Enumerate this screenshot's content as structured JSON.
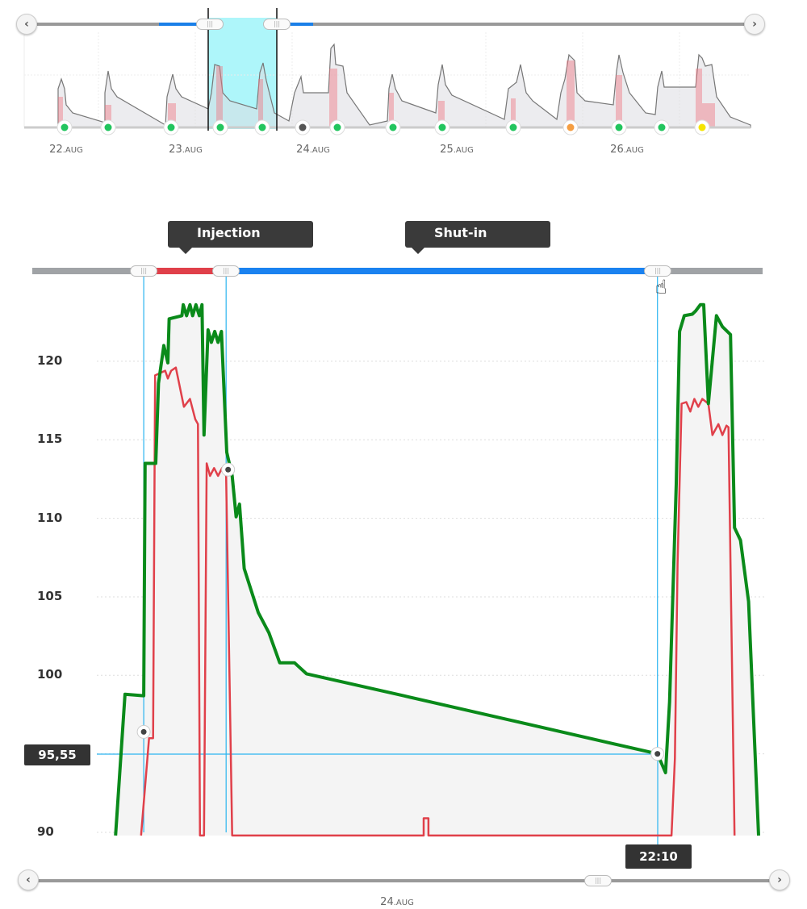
{
  "overview": {
    "dates": [
      {
        "day": "22",
        "month": ".AUG"
      },
      {
        "day": "23",
        "month": ".AUG"
      },
      {
        "day": "24",
        "month": ".AUG"
      },
      {
        "day": "25",
        "month": ".AUG"
      },
      {
        "day": "26",
        "month": ".AUG"
      }
    ],
    "status_markers": [
      "#22c55e",
      "#22c55e",
      "#22c55e",
      "#22c55e",
      "#22c55e",
      "#555555",
      "#22c55e",
      "#22c55e",
      "#22c55e",
      "#22c55e",
      "#f59e42",
      "#22c55e",
      "#22c55e",
      "#f5e400"
    ],
    "prev_icon": "‹",
    "next_icon": "›"
  },
  "phases": {
    "injection": "Injection",
    "shut_in": "Shut-in"
  },
  "crosshair": {
    "value_label": "95,55",
    "time_label": "22:10"
  },
  "bottom": {
    "date_day": "24",
    "date_month": ".AUG",
    "prev_icon": "‹",
    "next_icon": "›"
  },
  "colors": {
    "green": "#0a8a1a",
    "red": "#e0404a",
    "blue": "#1a82f0",
    "cyan": "#2ab4f0"
  },
  "chart_data": {
    "type": "line",
    "xlabel": "",
    "ylabel": "",
    "xlim": [
      0,
      100
    ],
    "ylim": [
      90,
      124
    ],
    "yticks": [
      90,
      95,
      100,
      105,
      110,
      115,
      120
    ],
    "ytick_labels": [
      "90",
      "",
      "100",
      "105",
      "110",
      "115",
      "120"
    ],
    "grid": true,
    "series": [
      {
        "name": "green",
        "color": "#0a8a1a",
        "points": [
          [
            2.8,
            89.8
          ],
          [
            4.2,
            98.8
          ],
          [
            7.0,
            98.7
          ],
          [
            7.2,
            113.5
          ],
          [
            8.8,
            113.5
          ],
          [
            9.2,
            118.6
          ],
          [
            10.0,
            121.0
          ],
          [
            10.6,
            119.9
          ],
          [
            10.8,
            122.7
          ],
          [
            12.7,
            122.9
          ],
          [
            12.9,
            123.6
          ],
          [
            13.4,
            122.9
          ],
          [
            13.9,
            123.6
          ],
          [
            14.3,
            122.9
          ],
          [
            14.8,
            123.6
          ],
          [
            15.3,
            122.9
          ],
          [
            15.7,
            123.6
          ],
          [
            16.0,
            115.3
          ],
          [
            16.6,
            122.0
          ],
          [
            17.1,
            121.2
          ],
          [
            17.6,
            121.9
          ],
          [
            18.1,
            121.2
          ],
          [
            18.6,
            121.9
          ],
          [
            19.4,
            114.2
          ],
          [
            20.2,
            112.7
          ],
          [
            20.8,
            110.1
          ],
          [
            21.3,
            110.9
          ],
          [
            22.0,
            106.8
          ],
          [
            24.1,
            104.0
          ],
          [
            25.7,
            102.7
          ],
          [
            27.3,
            100.8
          ],
          [
            29.5,
            100.8
          ],
          [
            31.3,
            100.1
          ],
          [
            45.8,
            98.7
          ],
          [
            83.7,
            95.0
          ],
          [
            84.9,
            93.8
          ],
          [
            85.5,
            98.3
          ],
          [
            86.5,
            112.2
          ],
          [
            87.0,
            121.9
          ],
          [
            87.7,
            122.9
          ],
          [
            88.9,
            123.0
          ],
          [
            89.4,
            123.2
          ],
          [
            90.1,
            123.6
          ],
          [
            90.6,
            123.6
          ],
          [
            91.3,
            117.3
          ],
          [
            92.5,
            122.9
          ],
          [
            93.4,
            122.2
          ],
          [
            94.6,
            121.7
          ],
          [
            95.2,
            109.4
          ],
          [
            96.1,
            108.6
          ],
          [
            97.3,
            104.7
          ],
          [
            98.8,
            89.8
          ]
        ]
      },
      {
        "name": "red",
        "color": "#e0404a",
        "points": [
          [
            6.6,
            89.8
          ],
          [
            7.8,
            96.0
          ],
          [
            8.4,
            96.0
          ],
          [
            8.7,
            119.1
          ],
          [
            10.2,
            119.4
          ],
          [
            10.6,
            118.9
          ],
          [
            11.1,
            119.4
          ],
          [
            11.8,
            119.6
          ],
          [
            13.0,
            117.1
          ],
          [
            13.9,
            117.6
          ],
          [
            14.7,
            116.3
          ],
          [
            15.1,
            116.0
          ],
          [
            15.4,
            89.8
          ],
          [
            16.0,
            89.8
          ],
          [
            16.4,
            113.5
          ],
          [
            16.9,
            112.7
          ],
          [
            17.5,
            113.2
          ],
          [
            18.1,
            112.7
          ],
          [
            18.7,
            113.2
          ],
          [
            19.3,
            112.7
          ],
          [
            20.2,
            89.8
          ],
          [
            48.8,
            89.8
          ],
          [
            48.8,
            90.9
          ],
          [
            49.5,
            90.9
          ],
          [
            49.5,
            89.8
          ],
          [
            85.8,
            89.8
          ],
          [
            86.3,
            94.7
          ],
          [
            86.7,
            107.1
          ],
          [
            87.3,
            117.3
          ],
          [
            88.0,
            117.4
          ],
          [
            88.6,
            116.8
          ],
          [
            89.2,
            117.6
          ],
          [
            89.8,
            117.1
          ],
          [
            90.4,
            117.6
          ],
          [
            91.3,
            117.3
          ],
          [
            91.9,
            115.3
          ],
          [
            92.8,
            116.0
          ],
          [
            93.4,
            115.3
          ],
          [
            94.0,
            115.9
          ],
          [
            94.3,
            115.8
          ],
          [
            95.2,
            89.8
          ]
        ]
      }
    ],
    "markers": [
      [
        7.0,
        96.4
      ],
      [
        19.6,
        113.1
      ],
      [
        83.7,
        95.0
      ]
    ],
    "range": {
      "injection": [
        7.0,
        19.3
      ],
      "shut_in": [
        19.3,
        83.7
      ]
    }
  }
}
